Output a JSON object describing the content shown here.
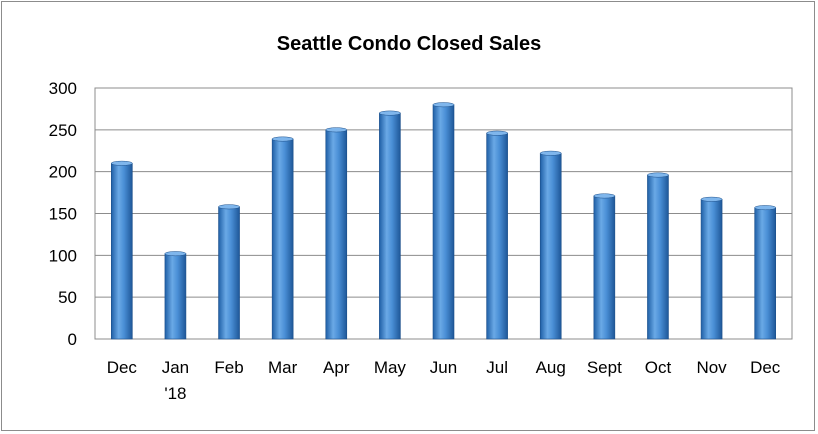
{
  "chart_data": {
    "type": "bar",
    "title": "Seattle Condo Closed Sales",
    "xlabel": "",
    "ylabel": "",
    "categories": [
      "Dec",
      "Jan\n'18",
      "Feb",
      "Mar",
      "Apr",
      "May",
      "Jun",
      "Jul",
      "Aug",
      "Sept",
      "Oct",
      "Nov",
      "Dec"
    ],
    "values": [
      210,
      102,
      158,
      239,
      250,
      270,
      280,
      246,
      222,
      171,
      196,
      167,
      157
    ],
    "ylim": [
      0,
      300
    ],
    "yticks": [
      0,
      50,
      100,
      150,
      200,
      250,
      300
    ],
    "grid": true,
    "legend": "none",
    "bar_color": "#3f82c9"
  }
}
